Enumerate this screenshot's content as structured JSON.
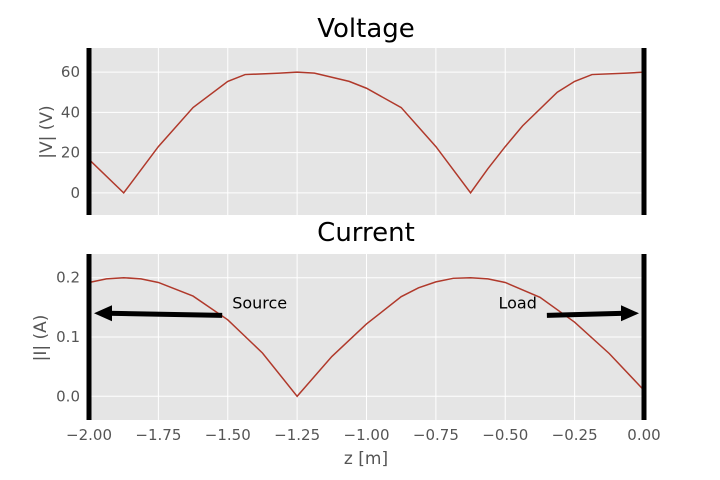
{
  "chart_data": [
    {
      "type": "line",
      "title": "Voltage",
      "ylabel": "|V| (V)",
      "xlabel": "",
      "xlim": [
        -2.0,
        0.0
      ],
      "ylim": [
        -11,
        72
      ],
      "yticks": [
        "0",
        "20",
        "40",
        "60"
      ],
      "grid": true,
      "series": [
        {
          "color": "#b0392b",
          "x": [
            -2.0,
            -1.875,
            -1.75,
            -1.625,
            -1.5,
            -1.4375,
            -1.3125,
            -1.25,
            -1.1875,
            -1.0625,
            -1.0,
            -0.875,
            -0.75,
            -0.625,
            -0.5625,
            -0.5,
            -0.4375,
            -0.3125,
            -0.25,
            -0.1875,
            -0.0625,
            0.0
          ],
          "y": [
            16.6,
            0.0,
            23.0,
            42.4,
            55.4,
            58.8,
            59.5,
            60.0,
            59.5,
            55.4,
            52.0,
            42.4,
            23.0,
            0.0,
            12.0,
            23.0,
            33.3,
            50.0,
            55.4,
            58.8,
            59.5,
            60.0
          ]
        }
      ],
      "markers": [
        {
          "name": "source-line",
          "x": -2.0,
          "color": "#000000"
        },
        {
          "name": "load-line",
          "x": 0.0,
          "color": "#000000"
        }
      ]
    },
    {
      "type": "line",
      "title": "Current",
      "ylabel": "|I| (A)",
      "xlabel": "z [m]",
      "xlim": [
        -2.0,
        0.0
      ],
      "ylim": [
        -0.04,
        0.24
      ],
      "yticks": [
        "0.0",
        "0.1",
        "0.2"
      ],
      "xticks": [
        "−2.00",
        "−1.75",
        "−1.50",
        "−1.25",
        "−1.00",
        "−0.75",
        "−0.50",
        "−0.25",
        "0.00"
      ],
      "grid": true,
      "series": [
        {
          "color": "#b0392b",
          "x": [
            -2.0,
            -1.9375,
            -1.875,
            -1.8125,
            -1.75,
            -1.625,
            -1.5,
            -1.375,
            -1.25,
            -1.125,
            -1.0,
            -0.875,
            -0.8125,
            -0.75,
            -0.6875,
            -0.625,
            -0.5625,
            -0.5,
            -0.375,
            -0.25,
            -0.125,
            0.0
          ],
          "y": [
            0.192,
            0.198,
            0.2,
            0.198,
            0.192,
            0.169,
            0.129,
            0.073,
            0.0,
            0.067,
            0.122,
            0.168,
            0.183,
            0.193,
            0.199,
            0.2,
            0.198,
            0.192,
            0.167,
            0.125,
            0.072,
            0.01
          ]
        }
      ],
      "markers": [
        {
          "name": "source-line",
          "x": -2.0,
          "color": "#000000"
        },
        {
          "name": "load-line",
          "x": 0.0,
          "color": "#000000"
        }
      ],
      "annotations": [
        {
          "text": "Source",
          "x": -1.52,
          "y": 0.145,
          "arrow_to": [
            -2.0,
            0.14
          ]
        },
        {
          "text": "Load",
          "x": -0.35,
          "y": 0.145,
          "arrow_to": [
            0.0,
            0.14
          ]
        }
      ]
    }
  ],
  "colors": {
    "plot_bg": "#e5e5e5",
    "grid": "#ffffff",
    "line": "#b0392b",
    "marker": "#000000"
  }
}
